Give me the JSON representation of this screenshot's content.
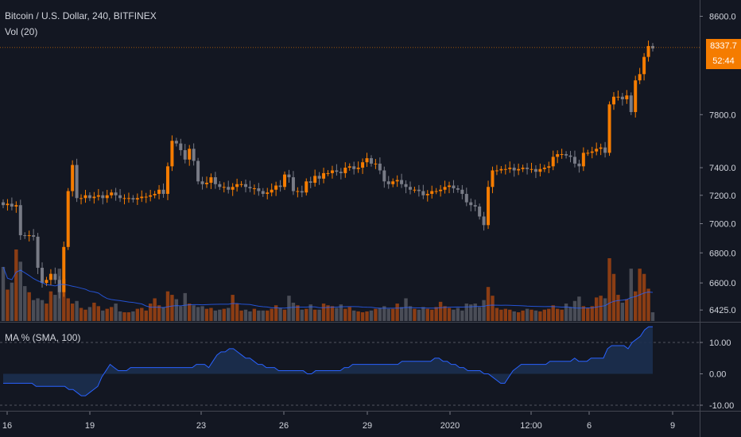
{
  "header": {
    "symbol_line": "Bitcoin / U.S. Dollar, 240, BITFINEX",
    "volume_label": "Vol (20)"
  },
  "indicator": {
    "label": "MA % (SMA, 100)"
  },
  "price_tag": {
    "last_price": "8337.7",
    "countdown": "52:44"
  },
  "colors": {
    "background": "#131722",
    "up": "#f57c00",
    "down": "#787b86",
    "up_volume": "#8b3d14",
    "down_volume": "#4a4d57",
    "volume_ma": "#2962ff",
    "ma_pct_line": "#2962ff",
    "ma_pct_fill": "#1c2f4f",
    "grid": "#2a2e39",
    "axis_text": "#d1d4dc"
  },
  "chart_data": [
    {
      "type": "candlestick",
      "title": "Bitcoin / U.S. Dollar, 240, BITFINEX",
      "y_axis_ticks": [
        "8600.0",
        "7800.0",
        "7400.0",
        "7200.0",
        "7000.0",
        "6800.0",
        "6600.0",
        "6425.0"
      ],
      "y_scale": "log",
      "x_axis_ticks": [
        "16",
        "19",
        "23",
        "26",
        "29",
        "2020",
        "12:00",
        "6",
        "9"
      ],
      "last_price": 8337.7,
      "close": [
        7130,
        7140,
        7120,
        7130,
        6920,
        6915,
        6920,
        6910,
        6700,
        6600,
        6620,
        6660,
        6620,
        6540,
        6840,
        7230,
        7420,
        7180,
        7180,
        7200,
        7180,
        7190,
        7200,
        7180,
        7200,
        7220,
        7200,
        7180,
        7180,
        7180,
        7170,
        7180,
        7190,
        7190,
        7200,
        7210,
        7240,
        7210,
        7410,
        7600,
        7580,
        7530,
        7460,
        7540,
        7450,
        7300,
        7280,
        7290,
        7330,
        7280,
        7260,
        7260,
        7240,
        7260,
        7280,
        7280,
        7260,
        7250,
        7250,
        7230,
        7210,
        7220,
        7240,
        7270,
        7260,
        7350,
        7330,
        7230,
        7230,
        7220,
        7300,
        7290,
        7340,
        7320,
        7360,
        7360,
        7380,
        7370,
        7360,
        7400,
        7410,
        7390,
        7400,
        7440,
        7470,
        7430,
        7430,
        7380,
        7300,
        7280,
        7300,
        7310,
        7280,
        7260,
        7240,
        7240,
        7230,
        7200,
        7210,
        7230,
        7230,
        7240,
        7260,
        7270,
        7250,
        7240,
        7210,
        7150,
        7130,
        7120,
        7050,
        6990,
        7260,
        7380,
        7380,
        7390,
        7390,
        7400,
        7380,
        7390,
        7400,
        7390,
        7390,
        7370,
        7390,
        7400,
        7410,
        7480,
        7500,
        7500,
        7490,
        7480,
        7430,
        7410,
        7510,
        7510,
        7520,
        7540,
        7550,
        7510,
        7880,
        7940,
        7940,
        7920,
        7950,
        7820,
        8070,
        8120,
        8260,
        8350,
        8330
      ],
      "volume": [
        620,
        360,
        440,
        820,
        680,
        400,
        330,
        240,
        260,
        240,
        200,
        340,
        300,
        600,
        480,
        260,
        200,
        230,
        150,
        130,
        160,
        210,
        170,
        120,
        140,
        160,
        200,
        110,
        100,
        100,
        110,
        140,
        150,
        120,
        200,
        260,
        180,
        160,
        340,
        300,
        250,
        170,
        320,
        200,
        180,
        160,
        170,
        140,
        150,
        120,
        130,
        140,
        150,
        300,
        200,
        120,
        130,
        110,
        140,
        120,
        120,
        120,
        140,
        180,
        150,
        130,
        290,
        210,
        180,
        130,
        140,
        190,
        130,
        130,
        200,
        180,
        170,
        150,
        190,
        140,
        160,
        120,
        110,
        100,
        110,
        120,
        140,
        150,
        170,
        140,
        140,
        200,
        160,
        260,
        170,
        140,
        130,
        160,
        140,
        130,
        160,
        220,
        170,
        150,
        130,
        150,
        120,
        200,
        190,
        200,
        160,
        240,
        390,
        290,
        150,
        130,
        140,
        130,
        110,
        100,
        120,
        140,
        130,
        120,
        110,
        130,
        140,
        180,
        140,
        130,
        200,
        160,
        230,
        280,
        170,
        150,
        170,
        270,
        290,
        260,
        720,
        540,
        300,
        210,
        250,
        600,
        340,
        600,
        540,
        370,
        100
      ]
    },
    {
      "type": "area",
      "title": "MA % (SMA, 100)",
      "y_axis_ticks": [
        "10.00",
        "0.00",
        "-10.00"
      ],
      "ylim": [
        -12,
        16
      ],
      "values": [
        -3,
        -3,
        -3,
        -3,
        -3,
        -3,
        -3,
        -3,
        -4,
        -4,
        -4,
        -4,
        -4,
        -4,
        -4,
        -4,
        -5,
        -5,
        -6,
        -7,
        -7,
        -6,
        -5,
        -4,
        -1,
        1,
        3,
        2,
        1,
        1,
        1,
        2,
        2,
        2,
        2,
        2,
        2,
        2,
        2,
        2,
        2,
        2,
        2,
        2,
        2,
        2,
        2,
        3,
        3,
        3,
        2,
        4,
        6,
        7,
        7,
        8,
        8,
        7,
        6,
        5,
        5,
        4,
        3,
        3,
        2,
        2,
        2,
        1,
        1,
        1,
        1,
        1,
        1,
        1,
        0,
        0,
        1,
        1,
        1,
        1,
        1,
        1,
        1,
        2,
        2,
        3,
        3,
        3,
        3,
        3,
        3,
        3,
        3,
        3,
        3,
        3,
        3,
        4,
        4,
        4,
        4,
        4,
        4,
        4,
        4,
        5,
        5,
        4,
        4,
        3,
        3,
        2,
        2,
        1,
        1,
        1,
        1,
        0,
        0,
        -1,
        -2,
        -3,
        -3,
        -1,
        1,
        2,
        3,
        3,
        3,
        3,
        3,
        3,
        3,
        4,
        4,
        4,
        4,
        4,
        4,
        5,
        4,
        4,
        4,
        5,
        5,
        5,
        5,
        8,
        9,
        9,
        9,
        9,
        8,
        10,
        11,
        12,
        14,
        15,
        15
      ]
    }
  ]
}
